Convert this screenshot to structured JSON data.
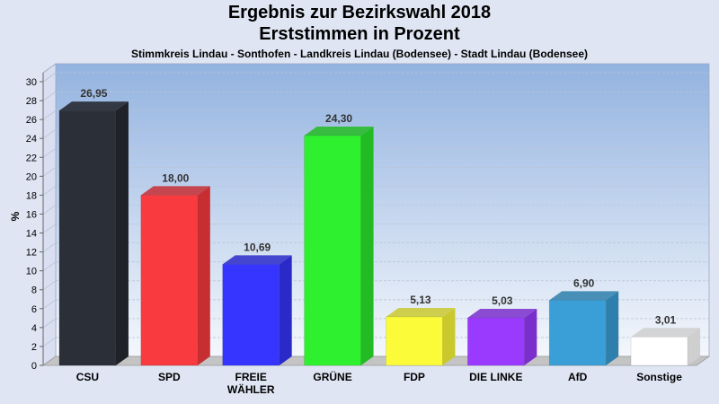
{
  "chart_data": {
    "type": "bar",
    "title": "Ergebnis zur Bezirkswahl 2018",
    "subtitle": "Erststimmen in Prozent",
    "subtitle2": "Stimmkreis Lindau - Sonthofen - Landkreis Lindau (Bodensee) - Stadt Lindau (Bodensee)",
    "ylabel": "%",
    "xlabel": "",
    "ylim": [
      0,
      30
    ],
    "yticks": [
      0,
      2,
      4,
      6,
      8,
      10,
      12,
      14,
      16,
      18,
      20,
      22,
      24,
      26,
      28,
      30
    ],
    "grid": true,
    "categories": [
      "CSU",
      "SPD",
      "FREIE WÄHLER",
      "GRÜNE",
      "FDP",
      "DIE LINKE",
      "AfD",
      "Sonstige"
    ],
    "category_lines": [
      [
        "CSU"
      ],
      [
        "SPD"
      ],
      [
        "FREIE",
        "WÄHLER"
      ],
      [
        "GRÜNE"
      ],
      [
        "FDP"
      ],
      [
        "DIE LINKE"
      ],
      [
        "AfD"
      ],
      [
        "Sonstige"
      ]
    ],
    "values": [
      26.95,
      18.0,
      10.69,
      24.3,
      5.13,
      5.03,
      6.9,
      3.01
    ],
    "value_labels": [
      "26,95",
      "18,00",
      "10,69",
      "24,30",
      "5,13",
      "5,03",
      "6,90",
      "3,01"
    ],
    "colors": [
      "#2b2f38",
      "#f93a3f",
      "#3535ff",
      "#2ef02e",
      "#fbfb3a",
      "#9b3aff",
      "#3a9fd6",
      "#ffffff"
    ],
    "side_colors": [
      "#1f2228",
      "#c72e32",
      "#2a2ac9",
      "#23bb23",
      "#c9c92e",
      "#7a2ecb",
      "#2e7fab",
      "#cfcfcf"
    ]
  }
}
